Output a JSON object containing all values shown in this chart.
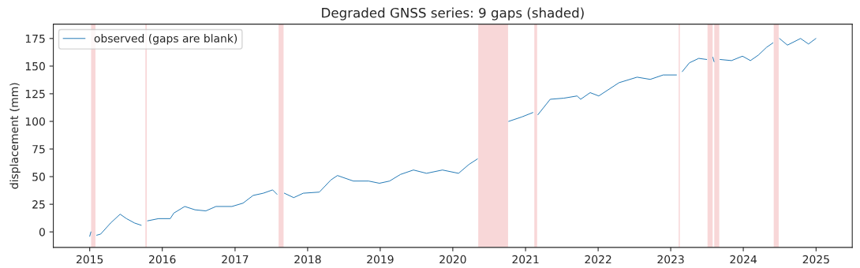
{
  "chart_data": {
    "type": "line",
    "title": "Degraded GNSS series: 9 gaps (shaded)",
    "ylabel": "displacement (mm)",
    "x": [
      "2015-01-01",
      "2015-01-07",
      "2015-01-20",
      "2015-02-05",
      "2015-02-25",
      "2015-04-16",
      "2015-06-03",
      "2015-07-05",
      "2015-08-15",
      "2015-09-17",
      "2015-10-11",
      "2015-10-19",
      "2015-12-13",
      "2016-02-10",
      "2016-02-28",
      "2016-04-23",
      "2016-06-13",
      "2016-08-07",
      "2016-09-27",
      "2016-12-16",
      "2017-02-10",
      "2017-04-02",
      "2017-05-23",
      "2017-07-09",
      "2017-07-31",
      "2017-08-20",
      "2017-09-06",
      "2017-10-23",
      "2017-12-10",
      "2018-03-01",
      "2018-04-28",
      "2018-05-31",
      "2018-08-19",
      "2018-11-04",
      "2018-12-28",
      "2019-02-17",
      "2019-04-13",
      "2019-06-17",
      "2019-08-22",
      "2019-11-10",
      "2020-01-30",
      "2020-03-22",
      "2020-05-04",
      "2020-07-20",
      "2020-10-08",
      "2020-12-13",
      "2021-02-07",
      "2021-02-21",
      "2021-03-04",
      "2021-05-05",
      "2021-07-13",
      "2021-09-17",
      "2021-10-05",
      "2021-11-22",
      "2022-01-04",
      "2022-04-16",
      "2022-07-16",
      "2022-09-20",
      "2022-11-24",
      "2023-01-30",
      "2023-02-13",
      "2023-02-28",
      "2023-04-05",
      "2023-05-22",
      "2023-07-01",
      "2023-07-18",
      "2023-08-01",
      "2023-08-07",
      "2023-08-20",
      "2023-09-06",
      "2023-11-03",
      "2023-12-28",
      "2024-02-06",
      "2024-03-17",
      "2024-04-27",
      "2024-05-29",
      "2024-06-15",
      "2024-07-01",
      "2024-08-10",
      "2024-10-15",
      "2024-11-24",
      "2024-12-31"
    ],
    "series": [
      {
        "name": "observed (gaps are blank)",
        "color": "#1f77b4",
        "values": [
          -4,
          0,
          null,
          -3,
          -2,
          8,
          16,
          12,
          8,
          6,
          null,
          10,
          12,
          12,
          17,
          23,
          20,
          19,
          23,
          23,
          26,
          33,
          35,
          38,
          34,
          null,
          35,
          31,
          35,
          36,
          47,
          51,
          46,
          46,
          44,
          46,
          52,
          56,
          53,
          56,
          53,
          61,
          66,
          null,
          100,
          104,
          108,
          null,
          106,
          120,
          121,
          123,
          120,
          126,
          123,
          135,
          140,
          138,
          142,
          142,
          null,
          145,
          153,
          157,
          156,
          null,
          158,
          154,
          null,
          156,
          155,
          159,
          155,
          160,
          167,
          171,
          null,
          175,
          169,
          175,
          170,
          175
        ]
      }
    ],
    "bands": [
      {
        "axis": "x",
        "from": "2015-01-08",
        "to": "2015-01-30",
        "color": "#f8d7d8"
      },
      {
        "axis": "x",
        "from": "2015-10-08",
        "to": "2015-10-15",
        "color": "#f8d7d8"
      },
      {
        "axis": "x",
        "from": "2017-08-08",
        "to": "2017-09-02",
        "color": "#f8d7d8"
      },
      {
        "axis": "x",
        "from": "2020-05-08",
        "to": "2020-10-05",
        "color": "#f8d7d8"
      },
      {
        "axis": "x",
        "from": "2021-02-14",
        "to": "2021-02-28",
        "color": "#f8d7d8"
      },
      {
        "axis": "x",
        "from": "2023-02-10",
        "to": "2023-02-16",
        "color": "#f8d7d8"
      },
      {
        "axis": "x",
        "from": "2023-07-05",
        "to": "2023-07-31",
        "color": "#f8d7d8"
      },
      {
        "axis": "x",
        "from": "2023-08-08",
        "to": "2023-09-02",
        "color": "#f8d7d8"
      },
      {
        "axis": "x",
        "from": "2024-06-02",
        "to": "2024-06-27",
        "color": "#f8d7d8"
      }
    ],
    "xlim": [
      "2014-07-02",
      "2025-07-02"
    ],
    "ylim": [
      -14,
      188
    ],
    "xticks": [
      {
        "value": "2015",
        "label": "2015"
      },
      {
        "value": "2016",
        "label": "2016"
      },
      {
        "value": "2017",
        "label": "2017"
      },
      {
        "value": "2018",
        "label": "2018"
      },
      {
        "value": "2019",
        "label": "2019"
      },
      {
        "value": "2020",
        "label": "2020"
      },
      {
        "value": "2021",
        "label": "2021"
      },
      {
        "value": "2022",
        "label": "2022"
      },
      {
        "value": "2023",
        "label": "2023"
      },
      {
        "value": "2024",
        "label": "2024"
      },
      {
        "value": "2025",
        "label": "2025"
      }
    ],
    "yticks": [
      0,
      25,
      50,
      75,
      100,
      125,
      150,
      175
    ],
    "legend": "top left",
    "marker": "none",
    "line_style": "solid"
  }
}
